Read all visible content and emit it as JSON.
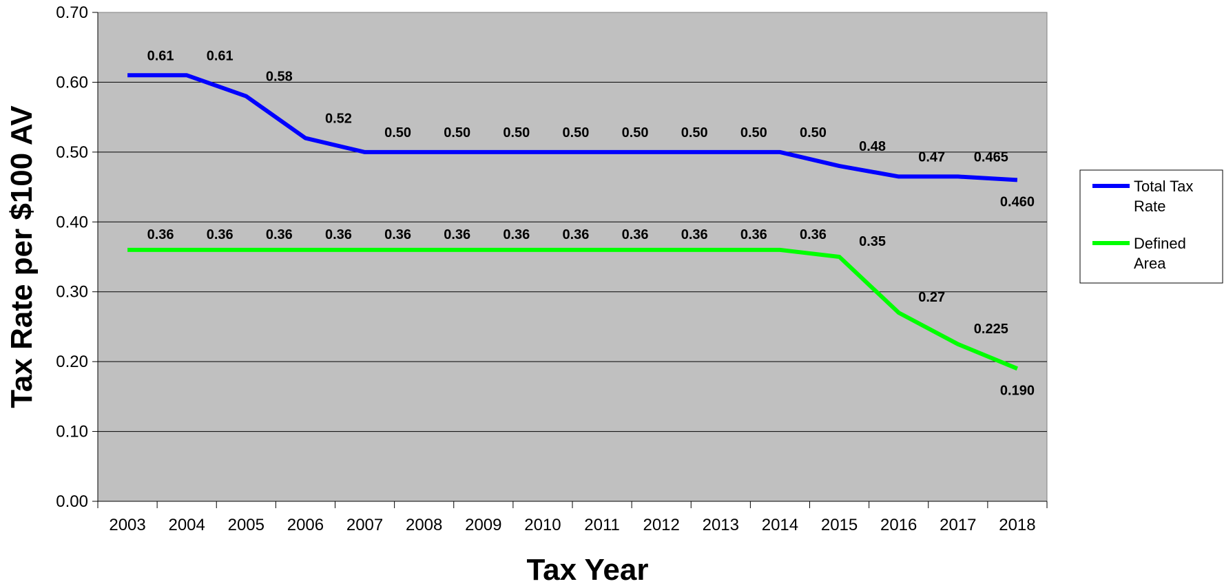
{
  "chart_data": {
    "type": "line",
    "title": "",
    "xlabel": "Tax Year",
    "ylabel": "Tax Rate per $100 AV",
    "ylim": [
      0,
      0.7
    ],
    "yticks": [
      "0.00",
      "0.10",
      "0.20",
      "0.30",
      "0.40",
      "0.50",
      "0.60",
      "0.70"
    ],
    "categories": [
      "2003",
      "2004",
      "2005",
      "2006",
      "2007",
      "2008",
      "2009",
      "2010",
      "2011",
      "2012",
      "2013",
      "2014",
      "2015",
      "2016",
      "2017",
      "2018"
    ],
    "grid": "horizontal",
    "legend_position": "right",
    "plot_background": "#c0c0c0",
    "series": [
      {
        "name": "Total Tax Rate",
        "legend_lines": [
          "Total Tax",
          "Rate"
        ],
        "color": "#0000ff",
        "values": [
          0.61,
          0.61,
          0.58,
          0.52,
          0.5,
          0.5,
          0.5,
          0.5,
          0.5,
          0.5,
          0.5,
          0.5,
          0.48,
          0.465,
          0.465,
          0.46
        ],
        "labels": [
          "0.61",
          "0.61",
          "0.58",
          "0.52",
          "0.50",
          "0.50",
          "0.50",
          "0.50",
          "0.50",
          "0.50",
          "0.50",
          "0.50",
          "0.48",
          "0.47",
          "0.465",
          "0.460"
        ]
      },
      {
        "name": "Defined Area",
        "legend_lines": [
          "Defined",
          "Area"
        ],
        "color": "#00ff00",
        "values": [
          0.36,
          0.36,
          0.36,
          0.36,
          0.36,
          0.36,
          0.36,
          0.36,
          0.36,
          0.36,
          0.36,
          0.36,
          0.35,
          0.27,
          0.225,
          0.19
        ],
        "labels": [
          "0.36",
          "0.36",
          "0.36",
          "0.36",
          "0.36",
          "0.36",
          "0.36",
          "0.36",
          "0.36",
          "0.36",
          "0.36",
          "0.36",
          "0.35",
          "0.27",
          "0.225",
          "0.190"
        ]
      }
    ]
  }
}
